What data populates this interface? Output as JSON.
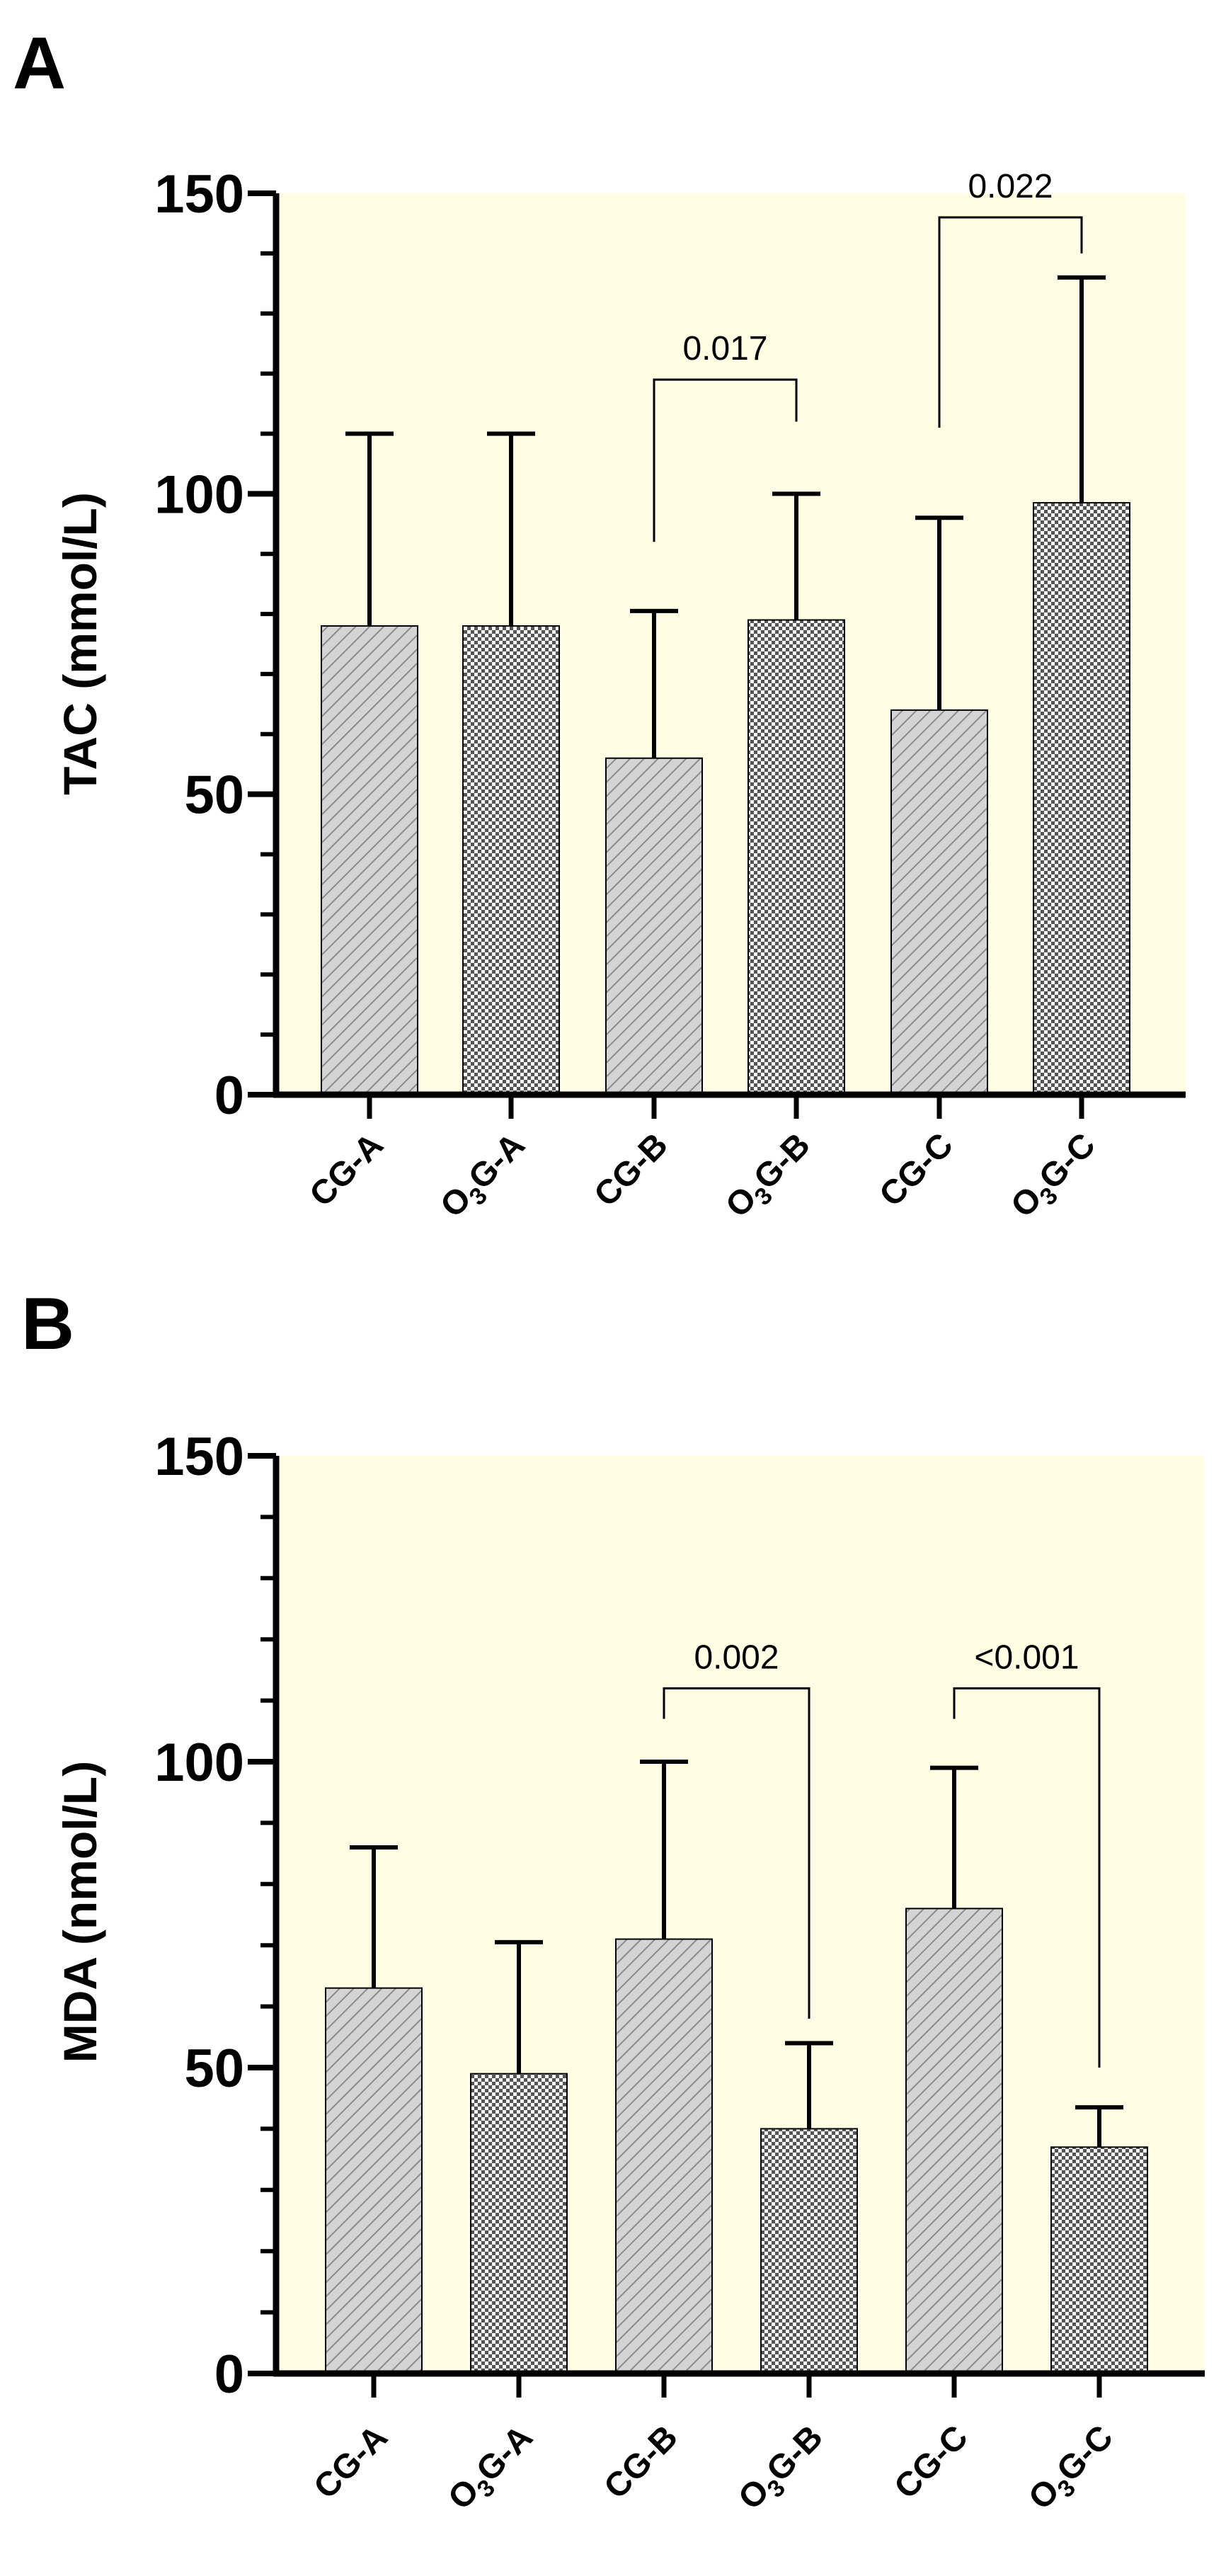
{
  "colors": {
    "plot_background": "#fffde3",
    "cg_bar": "#d4d4d4",
    "cg_hatch": "#8c8c8c",
    "o3g_bar": "#555555",
    "o3g_check": "#ffffff",
    "axis": "#000000"
  },
  "chart_data": [
    {
      "panel": "A",
      "type": "bar",
      "ylabel": "TAC (mmol/L)",
      "ylim": [
        0,
        150
      ],
      "yticks": [
        0,
        50,
        100,
        150
      ],
      "categories": [
        {
          "main": "CG-A",
          "parts": [
            "CG-A"
          ]
        },
        {
          "main": "O3G-A",
          "parts": [
            "O",
            "3",
            "G-A"
          ]
        },
        {
          "main": "CG-B",
          "parts": [
            "CG-B"
          ]
        },
        {
          "main": "O3G-B",
          "parts": [
            "O",
            "3",
            "G-B"
          ]
        },
        {
          "main": "CG-C",
          "parts": [
            "CG-C"
          ]
        },
        {
          "main": "O3G-C",
          "parts": [
            "O",
            "3",
            "G-C"
          ]
        }
      ],
      "values": [
        78,
        78,
        56,
        79,
        64,
        98.5
      ],
      "error_upper": [
        110,
        110,
        80.5,
        100,
        96,
        136
      ],
      "fill_patterns": [
        "hatch",
        "check",
        "hatch",
        "check",
        "hatch",
        "check"
      ],
      "comparisons": [
        {
          "from": 2,
          "to": 3,
          "label": "0.017",
          "y": 119,
          "left_drop": 92,
          "right_drop": 112
        },
        {
          "from": 4,
          "to": 5,
          "label": "0.022",
          "y": 146,
          "left_drop": 111,
          "right_drop": 140
        }
      ]
    },
    {
      "panel": "B",
      "type": "bar",
      "ylabel": "MDA (nmol/L)",
      "ylim": [
        0,
        150
      ],
      "yticks": [
        0,
        50,
        100,
        150
      ],
      "categories": [
        {
          "main": "CG-A",
          "parts": [
            "CG-A"
          ]
        },
        {
          "main": "O3G-A",
          "parts": [
            "O",
            "3",
            "G-A"
          ]
        },
        {
          "main": "CG-B",
          "parts": [
            "CG-B"
          ]
        },
        {
          "main": "O3G-B",
          "parts": [
            "O",
            "3",
            "G-B"
          ]
        },
        {
          "main": "CG-C",
          "parts": [
            "CG-C"
          ]
        },
        {
          "main": "O3G-C",
          "parts": [
            "O",
            "3",
            "G-C"
          ]
        }
      ],
      "values": [
        63,
        49,
        71,
        40,
        76,
        37
      ],
      "error_upper": [
        86,
        70.5,
        100,
        54,
        99,
        43.5
      ],
      "fill_patterns": [
        "hatch",
        "check",
        "hatch",
        "check",
        "hatch",
        "check"
      ],
      "comparisons": [
        {
          "from": 2,
          "to": 3,
          "label": "0.002",
          "y": 112,
          "left_drop": 107,
          "right_drop": 58
        },
        {
          "from": 4,
          "to": 5,
          "label": "<0.001",
          "y": 112,
          "left_drop": 107,
          "right_drop": 50
        }
      ]
    }
  ]
}
